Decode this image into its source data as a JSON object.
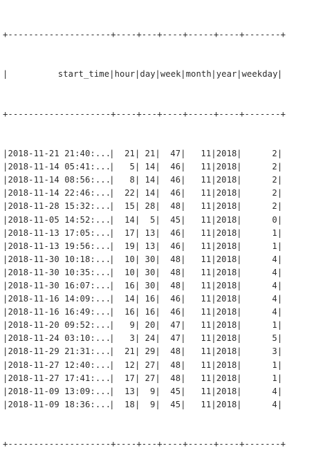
{
  "table": {
    "columns": [
      "start_time",
      "hour",
      "day",
      "week",
      "month",
      "year",
      "weekday"
    ],
    "rows": [
      [
        "2018-11-21 21:40:...",
        "21",
        "21",
        "47",
        "11",
        "2018",
        "2"
      ],
      [
        "2018-11-14 05:41:...",
        "5",
        "14",
        "46",
        "11",
        "2018",
        "2"
      ],
      [
        "2018-11-14 08:56:...",
        "8",
        "14",
        "46",
        "11",
        "2018",
        "2"
      ],
      [
        "2018-11-14 22:46:...",
        "22",
        "14",
        "46",
        "11",
        "2018",
        "2"
      ],
      [
        "2018-11-28 15:32:...",
        "15",
        "28",
        "48",
        "11",
        "2018",
        "2"
      ],
      [
        "2018-11-05 14:52:...",
        "14",
        "5",
        "45",
        "11",
        "2018",
        "0"
      ],
      [
        "2018-11-13 17:05:...",
        "17",
        "13",
        "46",
        "11",
        "2018",
        "1"
      ],
      [
        "2018-11-13 19:56:...",
        "19",
        "13",
        "46",
        "11",
        "2018",
        "1"
      ],
      [
        "2018-11-30 10:18:...",
        "10",
        "30",
        "48",
        "11",
        "2018",
        "4"
      ],
      [
        "2018-11-30 10:35:...",
        "10",
        "30",
        "48",
        "11",
        "2018",
        "4"
      ],
      [
        "2018-11-30 16:07:...",
        "16",
        "30",
        "48",
        "11",
        "2018",
        "4"
      ],
      [
        "2018-11-16 14:09:...",
        "14",
        "16",
        "46",
        "11",
        "2018",
        "4"
      ],
      [
        "2018-11-16 16:49:...",
        "16",
        "16",
        "46",
        "11",
        "2018",
        "4"
      ],
      [
        "2018-11-20 09:52:...",
        "9",
        "20",
        "47",
        "11",
        "2018",
        "1"
      ],
      [
        "2018-11-24 03:10:...",
        "3",
        "24",
        "47",
        "11",
        "2018",
        "5"
      ],
      [
        "2018-11-29 21:31:...",
        "21",
        "29",
        "48",
        "11",
        "2018",
        "3"
      ],
      [
        "2018-11-27 12:40:...",
        "12",
        "27",
        "48",
        "11",
        "2018",
        "1"
      ],
      [
        "2018-11-27 17:41:...",
        "17",
        "27",
        "48",
        "11",
        "2018",
        "1"
      ],
      [
        "2018-11-09 13:09:...",
        "13",
        "9",
        "45",
        "11",
        "2018",
        "4"
      ],
      [
        "2018-11-09 18:36:...",
        "18",
        "9",
        "45",
        "11",
        "2018",
        "4"
      ]
    ]
  }
}
